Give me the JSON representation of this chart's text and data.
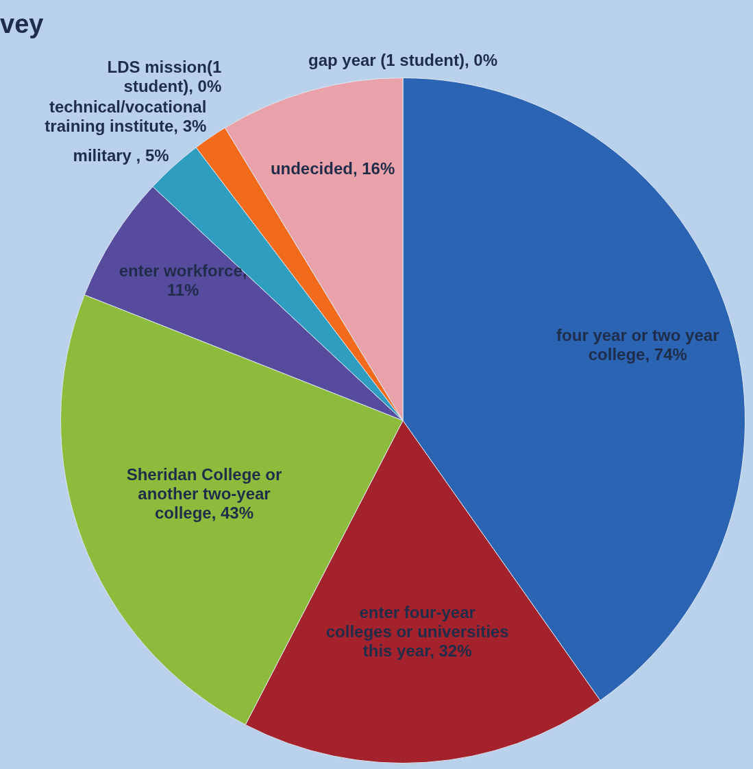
{
  "chart_data": {
    "type": "pie",
    "title": "vey",
    "categories": [
      "four year or two year college",
      "enter four-year colleges or universities this year",
      "Sheridan College or another two-year college",
      "enter workforce",
      "military ",
      "technical/vocational training institute",
      "LDS mission(1 student)",
      "undecided",
      "gap year (1 student)"
    ],
    "value_labels": [
      ", 74%",
      ", 32%",
      ", 43%",
      ", 11%",
      ", 5%",
      ", 3%",
      ", 0%",
      ", 16%",
      ", 0%"
    ],
    "values": [
      74,
      32,
      43,
      11,
      5,
      3,
      0,
      16,
      0
    ],
    "colors": [
      "#2b64b2",
      "#a3222c",
      "#8dbb3b",
      "#574b9e",
      "#2f9dbf",
      "#f26a1c",
      "#c0504d",
      "#e9a2aa",
      "#9bbb59"
    ],
    "legend": false
  }
}
